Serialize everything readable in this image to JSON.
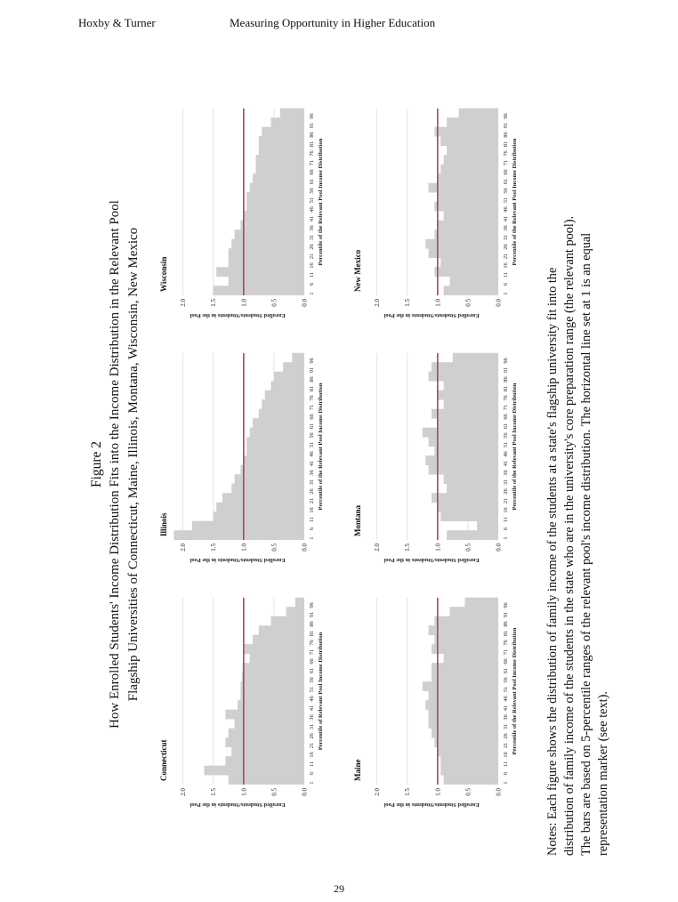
{
  "header": {
    "left": "Hoxby & Turner",
    "right": "Measuring Opportunity in Higher Education"
  },
  "figure": {
    "label": "Figure 2",
    "title_line1": "How Enrolled Students' Income Distribution Fits into the Income Distribution in the Relevant Pool",
    "title_line2": "Flagship Universities of Connecticut, Maine, Illinois, Montana, Wisconsin, New Mexico"
  },
  "notes": [
    "Notes:  Each figure shows the distribution of family income of the students at a state's flagship university fit into the",
    "distribution of family income of the students in the state who are in the university's core preparation range (the relevant pool).",
    "The bars are based on 5-percentile ranges of the relevant pool's income distribution.  The horizontal line set at 1 is an equal",
    "representation marker (see text)."
  ],
  "page_number": "29",
  "colors": {
    "bar": "#cfcfcf",
    "reference_line": "#b04a4a",
    "grid": "#dddddd"
  },
  "chart_data": [
    {
      "type": "bar",
      "title": "Connecticut",
      "xlabel": "Percentile of Relevant Pool Income Distribution",
      "ylabel": "Enrolled Students/Students in the Pool",
      "categories": [
        "1",
        "6",
        "11",
        "16",
        "21",
        "26",
        "31",
        "36",
        "41",
        "46",
        "51",
        "56",
        "61",
        "66",
        "71",
        "76",
        "81",
        "86",
        "91",
        "96"
      ],
      "values": [
        1.25,
        1.65,
        1.3,
        1.2,
        1.3,
        1.25,
        1.15,
        1.3,
        1.1,
        1.05,
        1.05,
        1.03,
        1.02,
        0.9,
        1.0,
        0.85,
        0.75,
        0.55,
        0.3,
        0.15
      ],
      "yticks": [
        "0.0",
        "0.5",
        "1.0",
        "1.5",
        "2.0"
      ],
      "ylim": [
        0,
        2.2
      ],
      "reference_line": 1.0
    },
    {
      "type": "bar",
      "title": "Illinois",
      "xlabel": "Percentile of the Relevant Pool Income Distribution",
      "ylabel": "Enrolled Students/Students in the Pool",
      "categories": [
        "1",
        "6",
        "11",
        "16",
        "21",
        "26",
        "31",
        "36",
        "41",
        "46",
        "51",
        "56",
        "61",
        "66",
        "71",
        "76",
        "81",
        "86",
        "91",
        "96"
      ],
      "values": [
        2.15,
        1.85,
        1.5,
        1.45,
        1.35,
        1.2,
        1.15,
        1.05,
        1.0,
        0.95,
        0.95,
        0.9,
        0.85,
        0.75,
        0.7,
        0.65,
        0.55,
        0.5,
        0.35,
        0.2
      ],
      "yticks": [
        "0.0",
        "0.5",
        "1.0",
        "1.5",
        "2.0"
      ],
      "ylim": [
        0,
        2.2
      ],
      "reference_line": 1.0
    },
    {
      "type": "bar",
      "title": "Wisconsin",
      "xlabel": "Percentile of the Relevant Pool Income Distribution",
      "ylabel": "Enrolled Students/Students in the Pool",
      "categories": [
        "1",
        "6",
        "11",
        "16",
        "21",
        "26",
        "31",
        "36",
        "41",
        "46",
        "51",
        "56",
        "61",
        "66",
        "71",
        "76",
        "81",
        "86",
        "91",
        "96"
      ],
      "values": [
        1.5,
        1.25,
        1.45,
        1.25,
        1.25,
        1.2,
        1.15,
        1.05,
        1.0,
        0.95,
        0.95,
        0.9,
        0.85,
        0.8,
        0.8,
        0.75,
        0.75,
        0.7,
        0.55,
        0.4
      ],
      "yticks": [
        "0.0",
        "0.5",
        "1.0",
        "1.5",
        "2.0"
      ],
      "ylim": [
        0,
        2.2
      ],
      "reference_line": 1.0
    },
    {
      "type": "bar",
      "title": "Maine",
      "xlabel": "Percentile of the Relevant Pool Income Distribution",
      "ylabel": "Enrolled Students/Students in the Pool",
      "categories": [
        "1",
        "6",
        "11",
        "16",
        "21",
        "26",
        "31",
        "36",
        "41",
        "46",
        "51",
        "56",
        "61",
        "66",
        "71",
        "76",
        "81",
        "86",
        "91",
        "96"
      ],
      "values": [
        0.9,
        0.95,
        0.95,
        1.0,
        1.05,
        1.1,
        1.15,
        1.15,
        1.2,
        1.15,
        1.25,
        1.1,
        1.1,
        0.9,
        1.1,
        1.05,
        1.15,
        1.05,
        0.8,
        0.55
      ],
      "yticks": [
        "0.0",
        "0.5",
        "1.0",
        "1.5",
        "2.0"
      ],
      "ylim": [
        0,
        2.2
      ],
      "reference_line": 1.0
    },
    {
      "type": "bar",
      "title": "Montana",
      "xlabel": "Percentile of the Relevant Pool Income Distribution",
      "ylabel": "Enrolled Students/Students in the Pool",
      "categories": [
        "1",
        "6",
        "11",
        "16",
        "21",
        "26",
        "31",
        "36",
        "41",
        "46",
        "51",
        "56",
        "61",
        "66",
        "71",
        "76",
        "81",
        "86",
        "91",
        "96"
      ],
      "values": [
        0.85,
        0.35,
        0.95,
        1.0,
        1.1,
        0.85,
        0.9,
        1.15,
        1.2,
        1.05,
        1.15,
        1.25,
        1.0,
        1.1,
        0.9,
        1.0,
        0.9,
        1.15,
        1.1,
        0.75
      ],
      "yticks": [
        "0.0",
        "0.5",
        "1.0",
        "1.5",
        "2.0"
      ],
      "ylim": [
        0,
        2.2
      ],
      "reference_line": 1.0
    },
    {
      "type": "bar",
      "title": "New Mexico",
      "xlabel": "Percentile of the Relevant Pool Income Distribution",
      "ylabel": "Enrolled Students/Students in the Pool",
      "categories": [
        "1",
        "6",
        "11",
        "16",
        "21",
        "26",
        "31",
        "36",
        "41",
        "46",
        "51",
        "56",
        "61",
        "66",
        "71",
        "76",
        "81",
        "86",
        "91",
        "96"
      ],
      "values": [
        0.9,
        0.8,
        1.05,
        0.95,
        1.15,
        1.2,
        1.05,
        1.0,
        0.9,
        1.05,
        1.0,
        1.15,
        1.0,
        0.95,
        0.9,
        0.85,
        0.95,
        1.05,
        0.85,
        0.65
      ],
      "yticks": [
        "0.0",
        "0.5",
        "1.0",
        "1.5",
        "2.0"
      ],
      "ylim": [
        0,
        2.2
      ],
      "reference_line": 1.0
    }
  ]
}
